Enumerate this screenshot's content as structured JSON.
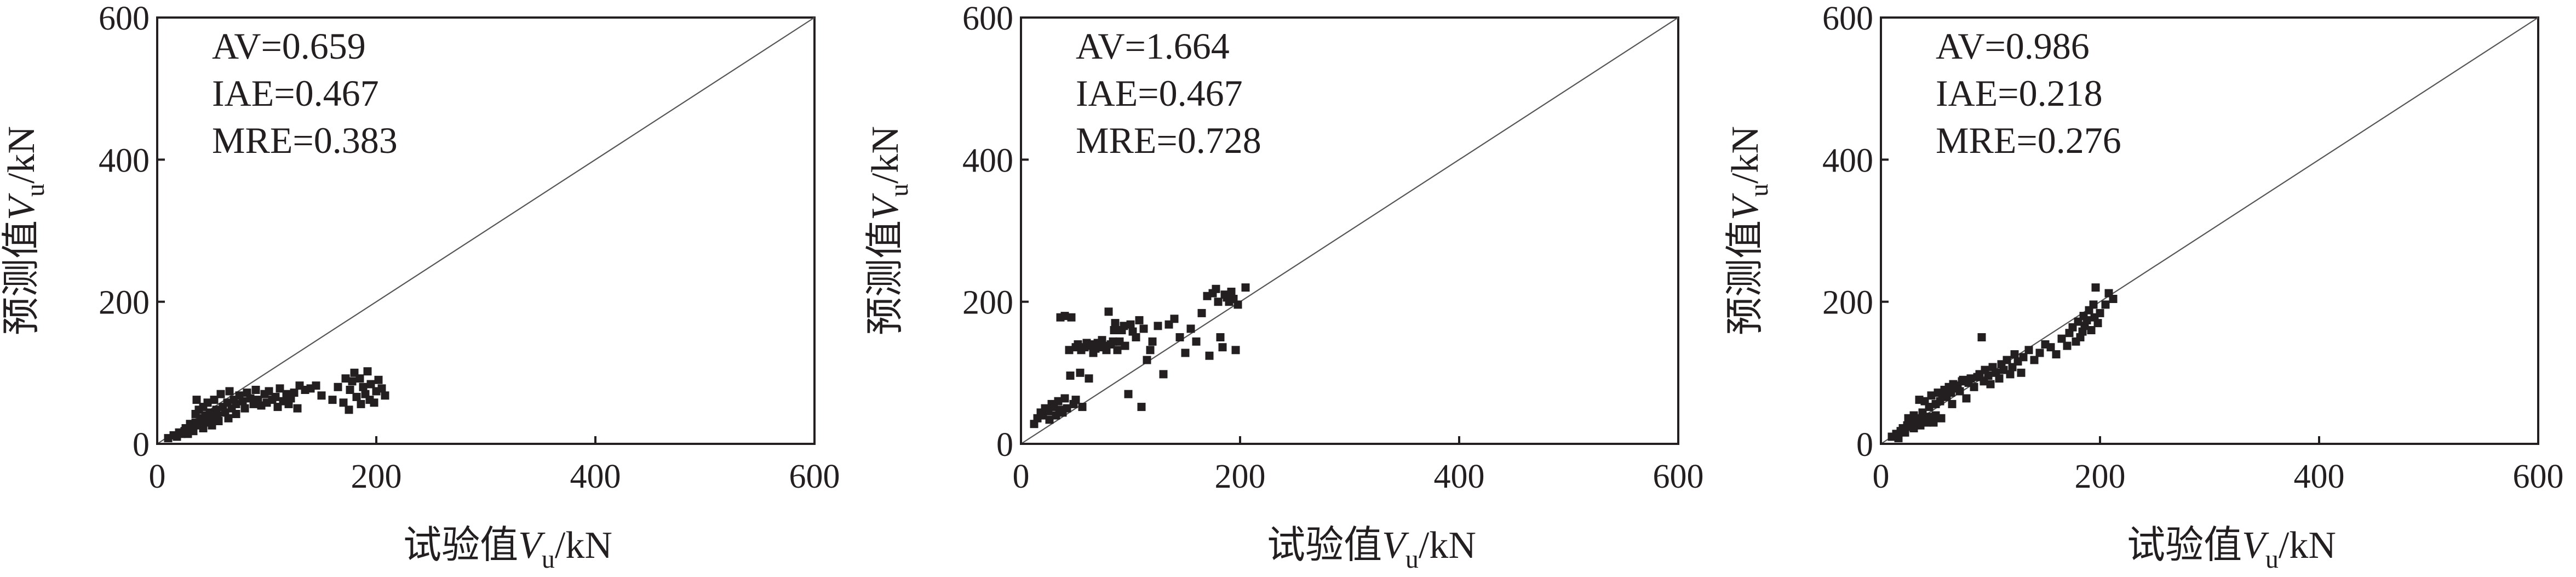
{
  "colors": {
    "ink": "#231f20",
    "background": "#ffffff"
  },
  "chart_data": [
    {
      "type": "scatter",
      "xlabel": {
        "prefix": "试验值",
        "var": "V",
        "sub": "u",
        "unit": "/kN"
      },
      "ylabel": {
        "prefix": "预测值",
        "var": "V",
        "sub": "u",
        "unit": "/kN"
      },
      "xlim": [
        0,
        600
      ],
      "ylim": [
        0,
        600
      ],
      "xticks": [
        "0",
        "200",
        "400",
        "600"
      ],
      "yticks": [
        "0",
        "200",
        "400",
        "600"
      ],
      "grid": false,
      "reference_line": {
        "from": [
          0,
          0
        ],
        "to": [
          600,
          600
        ]
      },
      "annotations": [
        "AV=0.659",
        "IAE=0.467",
        "MRE=0.383"
      ],
      "points": [
        [
          10,
          8
        ],
        [
          15,
          12
        ],
        [
          18,
          10
        ],
        [
          20,
          16
        ],
        [
          22,
          14
        ],
        [
          25,
          18
        ],
        [
          26,
          22
        ],
        [
          28,
          14
        ],
        [
          30,
          20
        ],
        [
          30,
          28
        ],
        [
          32,
          24
        ],
        [
          33,
          18
        ],
        [
          35,
          30
        ],
        [
          35,
          42
        ],
        [
          36,
          62
        ],
        [
          38,
          26
        ],
        [
          38,
          48
        ],
        [
          40,
          36
        ],
        [
          42,
          22
        ],
        [
          42,
          52
        ],
        [
          44,
          40
        ],
        [
          45,
          30
        ],
        [
          46,
          58
        ],
        [
          48,
          44
        ],
        [
          50,
          36
        ],
        [
          50,
          26
        ],
        [
          52,
          62
        ],
        [
          54,
          48
        ],
        [
          55,
          40
        ],
        [
          56,
          32
        ],
        [
          58,
          70
        ],
        [
          60,
          52
        ],
        [
          62,
          44
        ],
        [
          64,
          58
        ],
        [
          65,
          36
        ],
        [
          66,
          74
        ],
        [
          68,
          50
        ],
        [
          70,
          62
        ],
        [
          72,
          56
        ],
        [
          72,
          42
        ],
        [
          75,
          68
        ],
        [
          78,
          60
        ],
        [
          80,
          50
        ],
        [
          82,
          72
        ],
        [
          85,
          64
        ],
        [
          88,
          56
        ],
        [
          90,
          76
        ],
        [
          92,
          62
        ],
        [
          95,
          54
        ],
        [
          98,
          70
        ],
        [
          100,
          58
        ],
        [
          102,
          74
        ],
        [
          105,
          62
        ],
        [
          108,
          66
        ],
        [
          110,
          52
        ],
        [
          112,
          78
        ],
        [
          115,
          60
        ],
        [
          118,
          70
        ],
        [
          120,
          56
        ],
        [
          122,
          64
        ],
        [
          125,
          72
        ],
        [
          128,
          50
        ],
        [
          130,
          82
        ],
        [
          135,
          76
        ],
        [
          140,
          78
        ],
        [
          145,
          82
        ],
        [
          150,
          68
        ],
        [
          160,
          62
        ],
        [
          165,
          80
        ],
        [
          170,
          58
        ],
        [
          172,
          92
        ],
        [
          175,
          48
        ],
        [
          176,
          76
        ],
        [
          178,
          88
        ],
        [
          180,
          100
        ],
        [
          182,
          66
        ],
        [
          185,
          92
        ],
        [
          186,
          56
        ],
        [
          188,
          80
        ],
        [
          190,
          70
        ],
        [
          192,
          102
        ],
        [
          194,
          62
        ],
        [
          195,
          84
        ],
        [
          198,
          58
        ],
        [
          200,
          74
        ],
        [
          202,
          90
        ],
        [
          205,
          78
        ],
        [
          208,
          68
        ]
      ]
    },
    {
      "type": "scatter",
      "xlabel": {
        "prefix": "试验值",
        "var": "V",
        "sub": "u",
        "unit": "/kN"
      },
      "ylabel": {
        "prefix": "预测值",
        "var": "V",
        "sub": "u",
        "unit": "/kN"
      },
      "xlim": [
        0,
        600
      ],
      "ylim": [
        0,
        600
      ],
      "xticks": [
        "0",
        "200",
        "400",
        "600"
      ],
      "yticks": [
        "0",
        "200",
        "400",
        "600"
      ],
      "grid": false,
      "reference_line": {
        "from": [
          0,
          0
        ],
        "to": [
          600,
          600
        ]
      },
      "annotations": [
        "AV=1.664",
        "IAE=0.467",
        "MRE=0.728"
      ],
      "points": [
        [
          12,
          28
        ],
        [
          15,
          36
        ],
        [
          18,
          44
        ],
        [
          20,
          40
        ],
        [
          22,
          50
        ],
        [
          25,
          46
        ],
        [
          26,
          34
        ],
        [
          28,
          56
        ],
        [
          30,
          52
        ],
        [
          32,
          40
        ],
        [
          34,
          60
        ],
        [
          35,
          48
        ],
        [
          36,
          178
        ],
        [
          38,
          44
        ],
        [
          40,
          64
        ],
        [
          40,
          180
        ],
        [
          42,
          50
        ],
        [
          44,
          132
        ],
        [
          45,
          96
        ],
        [
          46,
          178
        ],
        [
          48,
          56
        ],
        [
          50,
          136
        ],
        [
          50,
          62
        ],
        [
          52,
          140
        ],
        [
          54,
          100
        ],
        [
          55,
          132
        ],
        [
          56,
          52
        ],
        [
          58,
          136
        ],
        [
          60,
          142
        ],
        [
          62,
          92
        ],
        [
          64,
          138
        ],
        [
          65,
          140
        ],
        [
          66,
          128
        ],
        [
          68,
          134
        ],
        [
          70,
          142
        ],
        [
          72,
          136
        ],
        [
          74,
          146
        ],
        [
          75,
          138
        ],
        [
          78,
          132
        ],
        [
          80,
          186
        ],
        [
          82,
          140
        ],
        [
          84,
          144
        ],
        [
          85,
          160
        ],
        [
          86,
          170
        ],
        [
          88,
          132
        ],
        [
          90,
          144
        ],
        [
          92,
          160
        ],
        [
          94,
          166
        ],
        [
          95,
          138
        ],
        [
          98,
          70
        ],
        [
          100,
          168
        ],
        [
          102,
          158
        ],
        [
          105,
          150
        ],
        [
          108,
          174
        ],
        [
          110,
          52
        ],
        [
          112,
          162
        ],
        [
          115,
          118
        ],
        [
          118,
          132
        ],
        [
          120,
          144
        ],
        [
          125,
          166
        ],
        [
          130,
          98
        ],
        [
          135,
          168
        ],
        [
          140,
          176
        ],
        [
          145,
          150
        ],
        [
          150,
          128
        ],
        [
          155,
          162
        ],
        [
          160,
          144
        ],
        [
          165,
          184
        ],
        [
          170,
          208
        ],
        [
          172,
          124
        ],
        [
          175,
          212
        ],
        [
          178,
          218
        ],
        [
          180,
          200
        ],
        [
          182,
          150
        ],
        [
          184,
          136
        ],
        [
          186,
          210
        ],
        [
          188,
          206
        ],
        [
          190,
          200
        ],
        [
          192,
          214
        ],
        [
          194,
          204
        ],
        [
          196,
          132
        ],
        [
          198,
          196
        ],
        [
          205,
          220
        ]
      ]
    },
    {
      "type": "scatter",
      "xlabel": {
        "prefix": "试验值",
        "var": "V",
        "sub": "u",
        "unit": "/kN"
      },
      "ylabel": {
        "prefix": "预测值",
        "var": "V",
        "sub": "u",
        "unit": "/kN"
      },
      "xlim": [
        0,
        600
      ],
      "ylim": [
        0,
        600
      ],
      "xticks": [
        "0",
        "200",
        "400",
        "600"
      ],
      "yticks": [
        "0",
        "200",
        "400",
        "600"
      ],
      "grid": false,
      "reference_line": {
        "from": [
          0,
          0
        ],
        "to": [
          600,
          600
        ]
      },
      "annotations": [
        "AV=0.986",
        "IAE=0.218",
        "MRE=0.276"
      ],
      "points": [
        [
          10,
          10
        ],
        [
          14,
          14
        ],
        [
          16,
          8
        ],
        [
          18,
          18
        ],
        [
          20,
          22
        ],
        [
          22,
          16
        ],
        [
          24,
          26
        ],
        [
          25,
          36
        ],
        [
          26,
          24
        ],
        [
          28,
          30
        ],
        [
          30,
          22
        ],
        [
          30,
          40
        ],
        [
          32,
          28
        ],
        [
          34,
          36
        ],
        [
          35,
          62
        ],
        [
          36,
          26
        ],
        [
          38,
          44
        ],
        [
          40,
          34
        ],
        [
          40,
          60
        ],
        [
          42,
          30
        ],
        [
          44,
          52
        ],
        [
          45,
          38
        ],
        [
          46,
          68
        ],
        [
          48,
          30
        ],
        [
          50,
          56
        ],
        [
          50,
          40
        ],
        [
          52,
          72
        ],
        [
          54,
          60
        ],
        [
          55,
          36
        ],
        [
          56,
          70
        ],
        [
          58,
          76
        ],
        [
          60,
          66
        ],
        [
          62,
          80
        ],
        [
          64,
          72
        ],
        [
          65,
          56
        ],
        [
          66,
          84
        ],
        [
          68,
          78
        ],
        [
          70,
          82
        ],
        [
          72,
          74
        ],
        [
          74,
          88
        ],
        [
          75,
          90
        ],
        [
          78,
          64
        ],
        [
          80,
          86
        ],
        [
          82,
          92
        ],
        [
          85,
          80
        ],
        [
          88,
          94
        ],
        [
          90,
          98
        ],
        [
          92,
          150
        ],
        [
          94,
          88
        ],
        [
          95,
          104
        ],
        [
          98,
          96
        ],
        [
          100,
          84
        ],
        [
          102,
          108
        ],
        [
          105,
          100
        ],
        [
          108,
          92
        ],
        [
          110,
          112
        ],
        [
          112,
          104
        ],
        [
          115,
          118
        ],
        [
          118,
          98
        ],
        [
          120,
          108
        ],
        [
          122,
          126
        ],
        [
          125,
          116
        ],
        [
          128,
          100
        ],
        [
          130,
          122
        ],
        [
          135,
          132
        ],
        [
          140,
          118
        ],
        [
          145,
          128
        ],
        [
          150,
          140
        ],
        [
          155,
          136
        ],
        [
          160,
          126
        ],
        [
          165,
          148
        ],
        [
          170,
          138
        ],
        [
          172,
          156
        ],
        [
          175,
          164
        ],
        [
          178,
          144
        ],
        [
          180,
          172
        ],
        [
          182,
          150
        ],
        [
          184,
          158
        ],
        [
          185,
          180
        ],
        [
          186,
          166
        ],
        [
          188,
          174
        ],
        [
          190,
          188
        ],
        [
          192,
          160
        ],
        [
          194,
          196
        ],
        [
          195,
          178
        ],
        [
          196,
          220
        ],
        [
          198,
          170
        ],
        [
          200,
          184
        ],
        [
          205,
          196
        ],
        [
          208,
          212
        ],
        [
          212,
          204
        ]
      ]
    }
  ]
}
